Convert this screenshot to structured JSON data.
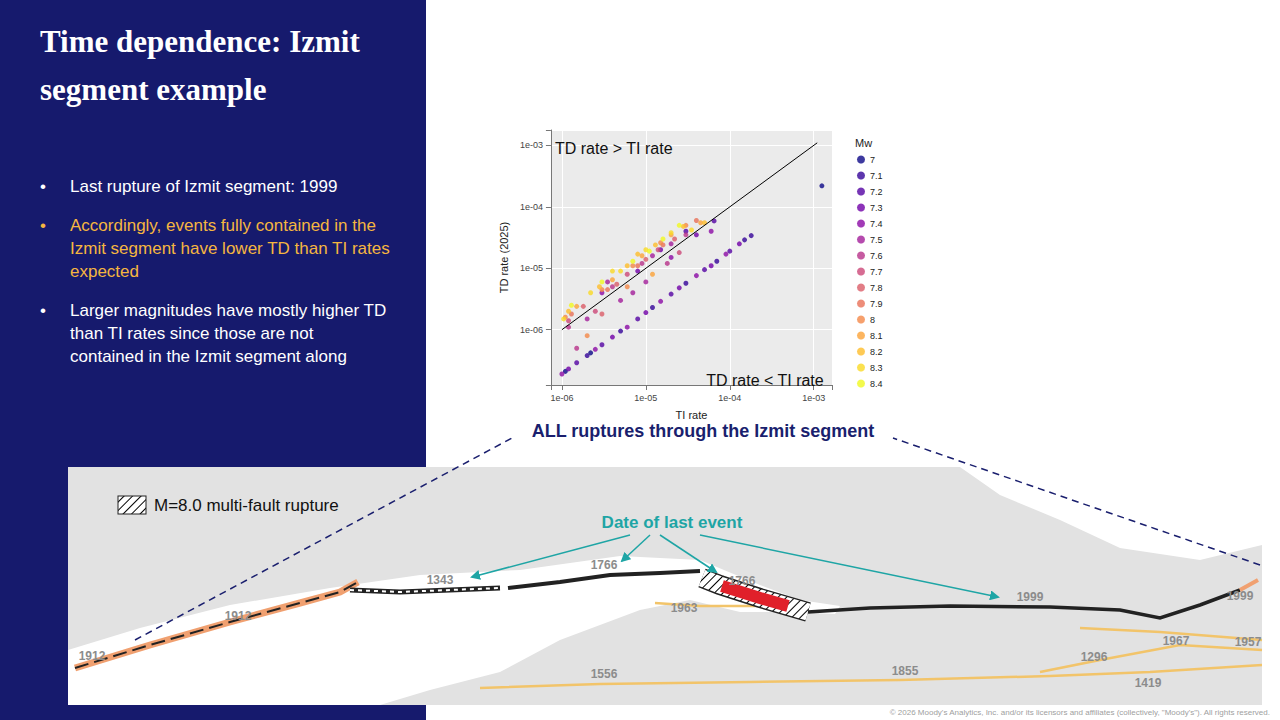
{
  "slide": {
    "title": "Time dependence: Izmit segment example",
    "bullets": [
      {
        "text": "Last rupture of Izmit segment: 1999",
        "color": "#ffffff"
      },
      {
        "text": "Accordingly, events fully contained in the Izmit segment have lower TD than TI rates expected",
        "color": "#f5b640"
      },
      {
        "text": "Larger magnitudes have mostly higher TD than TI rates since those are not contained in the Izmit segment along",
        "color": "#ffffff"
      }
    ],
    "chart_caption": "ALL ruptures through the Izmit segment",
    "copyright": "© 2026 Moody's Analytics, Inc. and/or its licensors and affiliates (collectively, \"Moody's\"). All rights reserved."
  },
  "map": {
    "legend_label": "M=8.0 multi-fault rupture",
    "callout": "Date of last event",
    "fault_dates": [
      "1912",
      "1912",
      "1343",
      "1766",
      "1766",
      "1963",
      "1999",
      "1999",
      "1967",
      "1957",
      "1296",
      "1855",
      "1419",
      "1556"
    ]
  },
  "chart_data": {
    "type": "scatter",
    "x_label": "TI rate",
    "y_label": "TD rate (2025)",
    "annotations": [
      "TD rate > TI rate",
      "TD rate < TI rate"
    ],
    "legend_title": "Mw",
    "legend": "right",
    "log": true,
    "grid": true,
    "xlim": [
      7.4e-07,
      0.00165
    ],
    "ylim": [
      1.26e-07,
      0.00178
    ],
    "xticks": [
      {
        "value": 1e-06,
        "label": "1e-06"
      },
      {
        "value": 1e-05,
        "label": "1e-05"
      },
      {
        "value": 0.0001,
        "label": "1e-04"
      },
      {
        "value": 0.001,
        "label": "1e-03"
      }
    ],
    "yticks": [
      {
        "value": 1e-06,
        "label": "1e-06"
      },
      {
        "value": 1e-05,
        "label": "1e-05"
      },
      {
        "value": 0.0001,
        "label": "1e-04"
      },
      {
        "value": 0.001,
        "label": "1e-03"
      }
    ],
    "reference_line": {
      "x": [
        1e-06,
        0.0011
      ],
      "y": [
        1e-06,
        0.0011
      ],
      "color": "#000000"
    },
    "series": [
      {
        "name": "7",
        "color": "#0d0887",
        "values": [
          [
            0.00125,
            0.00022
          ],
          [
            1.1e-06,
            2.1e-07
          ],
          [
            2.2e-06,
            4.2e-07
          ]
        ]
      },
      {
        "name": "7.1",
        "color": "#350498",
        "values": [
          [
            2e-06,
            3.8e-07
          ],
          [
            5e-06,
            9.5e-07
          ],
          [
            1.2e-05,
            2.3e-06
          ],
          [
            3e-05,
            5.7e-06
          ],
          [
            7e-05,
            1.3e-05
          ],
          [
            0.00015,
            2.9e-05
          ],
          [
            0.00018,
            3.4e-05
          ]
        ]
      },
      {
        "name": "7.2",
        "color": "#5402a3",
        "values": [
          [
            1.5e-06,
            2.9e-07
          ],
          [
            3e-06,
            5.7e-07
          ],
          [
            8e-06,
            1.5e-06
          ],
          [
            2e-05,
            3.8e-06
          ],
          [
            5e-05,
            9.5e-06
          ],
          [
            0.0001,
            1.9e-05
          ],
          [
            3e-05,
            4e-05
          ],
          [
            6.5e-05,
            5.9e-05
          ]
        ]
      },
      {
        "name": "7.3",
        "color": "#7000a8",
        "values": [
          [
            1.2e-06,
            2.3e-07
          ],
          [
            4e-06,
            7.6e-07
          ],
          [
            1e-05,
            1.9e-06
          ],
          [
            2.5e-05,
            4.8e-06
          ],
          [
            6e-05,
            1.1e-05
          ],
          [
            0.00013,
            2.5e-05
          ],
          [
            8e-06,
            9e-06
          ],
          [
            4e-05,
            3.5e-05
          ],
          [
            1.5e-05,
            2e-05
          ]
        ]
      },
      {
        "name": "7.4",
        "color": "#8b0aa5",
        "values": [
          [
            1e-06,
            1.9e-07
          ],
          [
            2.5e-06,
            4.8e-07
          ],
          [
            6e-06,
            1.1e-06
          ],
          [
            1.5e-05,
            2.9e-06
          ],
          [
            4e-05,
            7.6e-06
          ],
          [
            9e-05,
            1.7e-05
          ],
          [
            2e-05,
            1.5e-05
          ],
          [
            3e-06,
            4e-06
          ],
          [
            6e-05,
            4e-05
          ]
        ]
      },
      {
        "name": "7.5",
        "color": "#a31e9a",
        "values": [
          [
            2e-06,
            1.5e-06
          ],
          [
            5e-06,
            3e-06
          ],
          [
            1e-05,
            6e-06
          ],
          [
            2e-05,
            2.5e-05
          ],
          [
            3.5e-06,
            6e-06
          ],
          [
            1.2e-05,
            1.6e-05
          ],
          [
            7e-06,
            4e-06
          ]
        ]
      },
      {
        "name": "7.6",
        "color": "#b83289",
        "values": [
          [
            1.5e-06,
            5e-07
          ],
          [
            4e-06,
            5e-06
          ],
          [
            9e-06,
            1.2e-05
          ],
          [
            1.8e-05,
            1.2e-05
          ],
          [
            3e-05,
            3.5e-05
          ],
          [
            1.2e-06,
            1.1e-06
          ]
        ]
      },
      {
        "name": "7.7",
        "color": "#cc4778",
        "values": [
          [
            1.2e-06,
            1.4e-06
          ],
          [
            2.5e-06,
            2e-06
          ],
          [
            6e-06,
            8e-06
          ],
          [
            1.4e-05,
            2e-05
          ],
          [
            2.5e-05,
            1.8e-05
          ]
        ]
      },
      {
        "name": "7.8",
        "color": "#db5c68",
        "values": [
          [
            1.8e-06,
            2.4e-06
          ],
          [
            4.5e-06,
            5.5e-06
          ],
          [
            1e-05,
            1.4e-05
          ],
          [
            2.2e-05,
            3e-05
          ],
          [
            3e-06,
            1.8e-06
          ]
        ]
      },
      {
        "name": "7.9",
        "color": "#e97158",
        "values": [
          [
            1.3e-06,
            1.8e-06
          ],
          [
            3.5e-06,
            4.5e-06
          ],
          [
            8e-06,
            1.1e-05
          ],
          [
            1.6e-05,
            2.4e-05
          ],
          [
            4e-05,
            6e-05
          ]
        ]
      },
      {
        "name": "8",
        "color": "#f48849",
        "values": [
          [
            1.1e-06,
            1.6e-06
          ],
          [
            3e-06,
            4.5e-06
          ],
          [
            7e-06,
            1.1e-05
          ],
          [
            1.5e-05,
            2.6e-05
          ],
          [
            3e-05,
            5e-05
          ],
          [
            6e-06,
            5e-06
          ],
          [
            2e-06,
            8e-07
          ]
        ]
      },
      {
        "name": "8.1",
        "color": "#fba238",
        "values": [
          [
            1.5e-06,
            2.4e-06
          ],
          [
            4e-06,
            6.5e-06
          ],
          [
            9e-06,
            1.6e-05
          ],
          [
            2e-05,
            3.5e-05
          ],
          [
            4.5e-05,
            5.5e-05
          ],
          [
            1.2e-05,
            8e-06
          ]
        ]
      },
      {
        "name": "8.2",
        "color": "#febd2a",
        "values": [
          [
            1.2e-06,
            2e-06
          ],
          [
            2.8e-06,
            5e-06
          ],
          [
            6e-06,
            1.1e-05
          ],
          [
            1.3e-05,
            2.4e-05
          ],
          [
            2.8e-05,
            4.8e-05
          ],
          [
            5e-05,
            5.5e-05
          ],
          [
            8e-06,
            1.7e-05
          ]
        ]
      },
      {
        "name": "8.3",
        "color": "#fada24",
        "values": [
          [
            1.05e-06,
            1.5e-06
          ],
          [
            2.2e-06,
            4e-06
          ],
          [
            5e-06,
            9e-06
          ],
          [
            1e-05,
            2e-05
          ],
          [
            2e-05,
            3.8e-05
          ],
          [
            3.5e-05,
            4.2e-05
          ],
          [
            4e-06,
            9e-06
          ]
        ]
      },
      {
        "name": "8.4",
        "color": "#f0f921",
        "values": [
          [
            1.3e-06,
            2.5e-06
          ],
          [
            3e-06,
            6e-06
          ],
          [
            7e-06,
            1.3e-05
          ],
          [
            1.6e-05,
            3e-05
          ],
          [
            2.5e-05,
            5e-05
          ],
          [
            1.1e-05,
            1.9e-05
          ]
        ]
      }
    ]
  }
}
